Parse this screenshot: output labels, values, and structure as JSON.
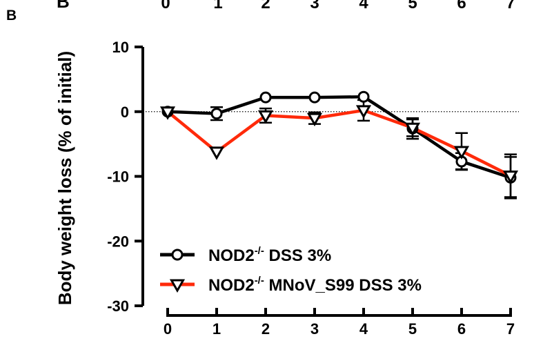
{
  "panel_letter": "B",
  "cut_letter": "B",
  "top_axis_ticks": [
    "0",
    "1",
    "2",
    "3",
    "4",
    "5",
    "6",
    "7"
  ],
  "chart_data": {
    "type": "line",
    "title": "",
    "xlabel": "",
    "ylabel": "Body weight loss (% of initial)",
    "x": [
      0,
      1,
      2,
      3,
      4,
      5,
      6,
      7
    ],
    "xlim": [
      0,
      7
    ],
    "ylim": [
      -30,
      10
    ],
    "yticks": [
      10,
      0,
      -10,
      -20,
      -30
    ],
    "xticks": [
      0,
      1,
      2,
      3,
      4,
      5,
      6,
      7
    ],
    "reference_line": {
      "y": 0,
      "style": "dotted"
    },
    "grid": false,
    "legend_position": "bottom-left",
    "series": [
      {
        "name": "NOD2-/- DSS 3%",
        "name_base": "NOD2",
        "name_sup": "-/-",
        "name_rest": " DSS 3%",
        "color": "#000000",
        "marker": "circle",
        "values": [
          0,
          -0.3,
          2.2,
          2.2,
          2.3,
          -2.6,
          -7.7,
          -10.2
        ],
        "error": [
          0,
          1.0,
          0,
          0,
          0,
          1.6,
          1.3,
          3.2
        ]
      },
      {
        "name": "NOD2-/- MNoV_S99 DSS 3%",
        "name_base": "NOD2",
        "name_sup": "-/-",
        "name_rest": " MNoV_S99 DSS 3%",
        "color": "#ff2a0a",
        "marker": "triangle-down",
        "values": [
          0,
          -6.2,
          -0.6,
          -1.0,
          0.2,
          -2.5,
          -6.1,
          -9.9
        ],
        "error": [
          0,
          0,
          1.1,
          0.9,
          1.6,
          1.3,
          2.8,
          3.3
        ]
      }
    ]
  }
}
